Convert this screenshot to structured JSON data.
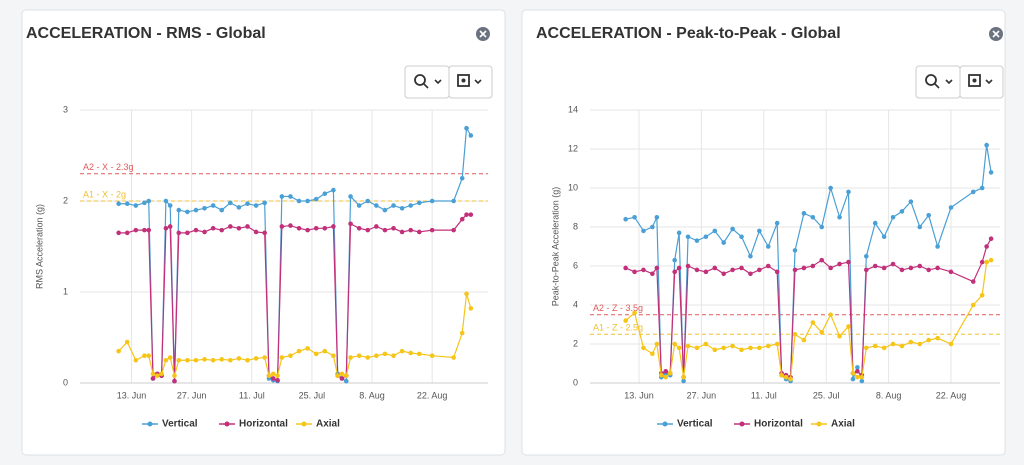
{
  "chart_data": [
    {
      "type": "line",
      "title": "ACCELERATION - RMS - Global",
      "y_label": "RMS Acceleration (g)",
      "x": [
        10,
        12,
        14,
        16,
        17,
        18,
        19,
        20,
        21,
        22,
        23,
        24,
        26,
        28,
        30,
        32,
        34,
        36,
        38,
        40,
        42,
        44,
        45,
        46,
        47,
        48,
        50,
        52,
        54,
        56,
        58,
        60,
        61,
        62,
        63,
        64,
        66,
        68,
        70,
        72,
        74,
        76,
        78,
        80,
        83,
        88,
        90,
        91,
        92
      ],
      "xlim": [
        1,
        96
      ],
      "xticks": [
        {
          "value": 13,
          "label": "13. Jun"
        },
        {
          "value": 27,
          "label": "27. Jun"
        },
        {
          "value": 41,
          "label": "11. Jul"
        },
        {
          "value": 55,
          "label": "25. Jul"
        },
        {
          "value": 69,
          "label": "8. Aug"
        },
        {
          "value": 83,
          "label": "22. Aug"
        }
      ],
      "ylim": [
        0,
        3
      ],
      "yticks": [
        0,
        1,
        2,
        3
      ],
      "grid": true,
      "thresholds": [
        {
          "label": "A2 - X - 2.3g",
          "value": 2.3,
          "color": "#e05a5a"
        },
        {
          "label": "A1 - X - 2g",
          "value": 2,
          "color": "#f0c030"
        }
      ],
      "series": [
        {
          "name": "Vertical",
          "color": "#4a9fd5",
          "values": [
            1.97,
            1.97,
            1.95,
            1.98,
            2.0,
            0.05,
            0.1,
            0.08,
            2.0,
            1.95,
            0.02,
            1.9,
            1.88,
            1.9,
            1.92,
            1.95,
            1.9,
            1.98,
            1.93,
            1.97,
            1.95,
            1.98,
            0.05,
            0.03,
            0.02,
            2.05,
            2.05,
            2.0,
            2.0,
            2.02,
            2.08,
            2.12,
            0.1,
            0.05,
            0.02,
            2.05,
            1.95,
            2.0,
            1.95,
            1.9,
            1.95,
            1.92,
            1.95,
            1.98,
            2.0,
            2.0,
            2.25,
            2.8,
            2.72
          ]
        },
        {
          "name": "Horizontal",
          "color": "#c2307a",
          "values": [
            1.65,
            1.65,
            1.68,
            1.68,
            1.68,
            0.05,
            0.1,
            0.08,
            1.7,
            1.72,
            0.02,
            1.65,
            1.65,
            1.68,
            1.66,
            1.7,
            1.68,
            1.72,
            1.7,
            1.72,
            1.66,
            1.65,
            0.08,
            0.05,
            0.03,
            1.72,
            1.73,
            1.7,
            1.68,
            1.7,
            1.7,
            1.72,
            0.08,
            0.05,
            0.08,
            1.75,
            1.7,
            1.68,
            1.72,
            1.68,
            1.7,
            1.66,
            1.68,
            1.66,
            1.68,
            1.68,
            1.8,
            1.85,
            1.85
          ]
        },
        {
          "name": "Axial",
          "color": "#f5c518",
          "values": [
            0.35,
            0.45,
            0.25,
            0.3,
            0.3,
            0.1,
            0.08,
            0.1,
            0.25,
            0.28,
            0.08,
            0.25,
            0.25,
            0.25,
            0.26,
            0.25,
            0.26,
            0.25,
            0.27,
            0.25,
            0.27,
            0.28,
            0.08,
            0.1,
            0.08,
            0.28,
            0.3,
            0.35,
            0.38,
            0.32,
            0.35,
            0.3,
            0.08,
            0.1,
            0.08,
            0.28,
            0.3,
            0.28,
            0.3,
            0.32,
            0.3,
            0.35,
            0.33,
            0.32,
            0.3,
            0.28,
            0.55,
            0.98,
            0.82
          ]
        }
      ]
    },
    {
      "type": "line",
      "title": "ACCELERATION - Peak-to-Peak - Global",
      "y_label": "Peak-to-Peak Acceleration (g)",
      "x": [
        10,
        12,
        14,
        16,
        17,
        18,
        19,
        20,
        21,
        22,
        23,
        24,
        26,
        28,
        30,
        32,
        34,
        36,
        38,
        40,
        42,
        44,
        45,
        46,
        47,
        48,
        50,
        52,
        54,
        56,
        58,
        60,
        61,
        62,
        63,
        64,
        66,
        68,
        70,
        72,
        74,
        76,
        78,
        80,
        83,
        88,
        90,
        91,
        92
      ],
      "xlim": [
        2,
        94
      ],
      "xticks": [
        {
          "value": 13,
          "label": "13. Jun"
        },
        {
          "value": 27,
          "label": "27. Jun"
        },
        {
          "value": 41,
          "label": "11. Jul"
        },
        {
          "value": 55,
          "label": "25. Jul"
        },
        {
          "value": 69,
          "label": "8. Aug"
        },
        {
          "value": 83,
          "label": "22. Aug"
        }
      ],
      "ylim": [
        0,
        14
      ],
      "yticks": [
        0,
        2,
        4,
        6,
        8,
        10,
        12,
        14
      ],
      "grid": true,
      "thresholds": [
        {
          "label": "A2 - Z - 3.5g",
          "value": 3.5,
          "color": "#e05a5a"
        },
        {
          "label": "A1 - Z - 2.5g",
          "value": 2.5,
          "color": "#f0c030"
        }
      ],
      "series": [
        {
          "name": "Vertical",
          "color": "#4a9fd5",
          "values": [
            8.4,
            8.5,
            7.8,
            8.0,
            8.5,
            0.3,
            0.5,
            0.4,
            6.3,
            7.7,
            0.1,
            7.5,
            7.3,
            7.5,
            7.8,
            7.2,
            7.9,
            7.5,
            6.5,
            7.8,
            7.0,
            8.2,
            0.4,
            0.2,
            0.1,
            6.8,
            8.7,
            8.5,
            8.0,
            10.0,
            8.5,
            9.8,
            0.2,
            0.8,
            0.1,
            6.5,
            8.2,
            7.5,
            8.5,
            8.8,
            9.3,
            8.0,
            8.6,
            7.0,
            9.0,
            9.8,
            10.0,
            12.2,
            10.8
          ]
        },
        {
          "name": "Horizontal",
          "color": "#c2307a",
          "values": [
            5.9,
            5.7,
            5.8,
            5.6,
            5.9,
            0.5,
            0.6,
            0.5,
            5.7,
            5.9,
            0.3,
            6.0,
            5.8,
            5.7,
            5.9,
            5.6,
            5.8,
            5.9,
            5.6,
            5.8,
            6.0,
            5.7,
            0.5,
            0.4,
            0.3,
            5.8,
            5.9,
            6.0,
            6.3,
            5.9,
            6.1,
            6.2,
            0.5,
            0.6,
            0.4,
            5.8,
            6.0,
            5.9,
            6.1,
            5.8,
            5.9,
            6.0,
            5.8,
            5.9,
            5.7,
            5.2,
            6.2,
            7.0,
            7.4
          ]
        },
        {
          "name": "Axial",
          "color": "#f5c518",
          "values": [
            3.2,
            3.6,
            1.8,
            1.5,
            2.0,
            0.4,
            0.3,
            0.5,
            2.0,
            1.8,
            0.3,
            1.9,
            1.8,
            2.0,
            1.7,
            1.8,
            1.9,
            1.7,
            1.8,
            1.8,
            1.9,
            2.0,
            0.4,
            0.3,
            0.2,
            2.5,
            2.2,
            3.1,
            2.6,
            3.5,
            2.4,
            2.9,
            0.5,
            0.3,
            0.3,
            1.8,
            1.9,
            1.8,
            2.0,
            1.9,
            2.1,
            2.0,
            2.2,
            2.3,
            2.0,
            4.0,
            4.5,
            6.2,
            6.3
          ]
        }
      ]
    }
  ]
}
